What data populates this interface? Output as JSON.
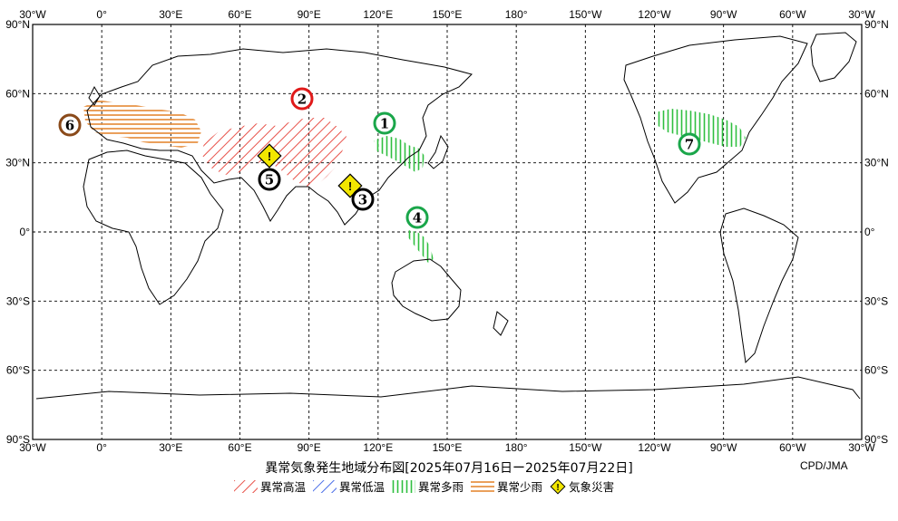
{
  "map": {
    "lon_labels": [
      "30°W",
      "0°",
      "30°E",
      "60°E",
      "90°E",
      "120°E",
      "150°E",
      "180°",
      "150°W",
      "120°W",
      "90°W",
      "60°W",
      "30°W"
    ],
    "lat_labels": [
      "90°N",
      "60°N",
      "30°N",
      "0°",
      "30°S",
      "60°S",
      "90°S"
    ],
    "title": "異常気象発生地域分布図[2025年07月16日ー2025年07月22日]",
    "credit": "CPD/JMA"
  },
  "legend": [
    {
      "key": "hot",
      "label": "異常高温",
      "color": "#e8524a",
      "icon": "hatch-diagonal-red"
    },
    {
      "key": "cold",
      "label": "異常低温",
      "color": "#4a6ee8",
      "icon": "hatch-diagonal-blue"
    },
    {
      "key": "wet",
      "label": "異常多雨",
      "color": "#2fbf3f",
      "icon": "hatch-vertical-green"
    },
    {
      "key": "dry",
      "label": "異常少雨",
      "color": "#e8964a",
      "icon": "hatch-horizontal-orange"
    },
    {
      "key": "disaster",
      "label": "気象災害",
      "color": "#f2e600",
      "icon": "warning-diamond-icon"
    }
  ],
  "events": [
    {
      "number": "1",
      "color": "#1aa64a"
    },
    {
      "number": "2",
      "color": "#e01a1a"
    },
    {
      "number": "3",
      "color": "#000000"
    },
    {
      "number": "4",
      "color": "#1aa64a"
    },
    {
      "number": "5",
      "color": "#000000"
    },
    {
      "number": "6",
      "color": "#8a4a1a"
    },
    {
      "number": "7",
      "color": "#1aa64a"
    }
  ],
  "disaster_marker_symbol": "!"
}
